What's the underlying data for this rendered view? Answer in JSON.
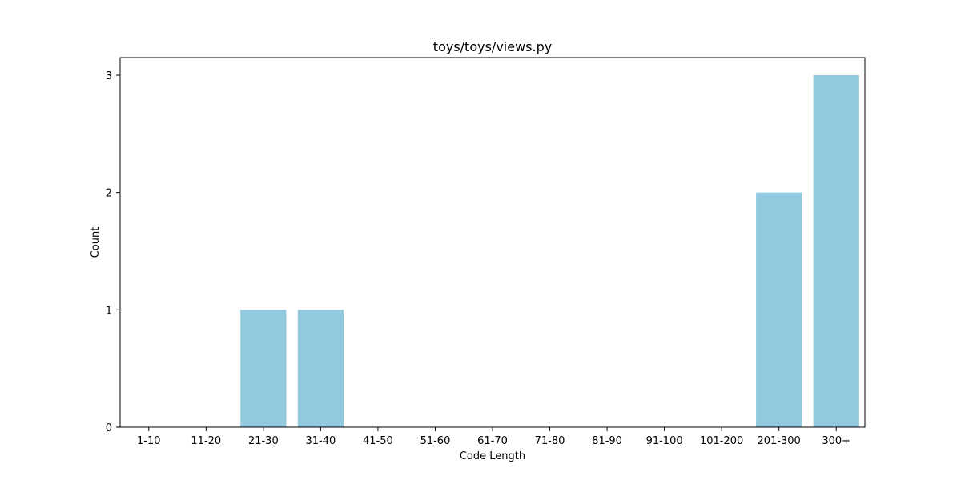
{
  "chart_data": {
    "type": "bar",
    "title": "toys/toys/views.py",
    "xlabel": "Code Length",
    "ylabel": "Count",
    "categories": [
      "1-10",
      "11-20",
      "21-30",
      "31-40",
      "41-50",
      "51-60",
      "61-70",
      "71-80",
      "81-90",
      "91-100",
      "101-200",
      "201-300",
      "300+"
    ],
    "values": [
      0,
      0,
      1,
      1,
      0,
      0,
      0,
      0,
      0,
      0,
      0,
      2,
      3
    ],
    "yticks": [
      "0",
      "1",
      "2",
      "3"
    ],
    "ylim": [
      0,
      3.15
    ],
    "grid": false,
    "bar_color": "#92c9df"
  }
}
